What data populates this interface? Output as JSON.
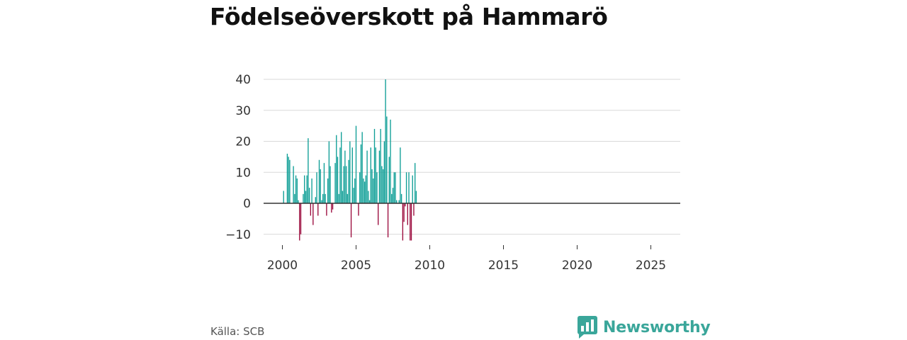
{
  "title": "Födelseöverskott på Hammarö",
  "source": "Källa: SCB",
  "brand": {
    "name": "Newsworthy",
    "icon": "newsworthy-logo-icon"
  },
  "colors": {
    "positive": "#0e9e96",
    "negative": "#9b0a3c",
    "grid": "#d9d9d9",
    "zero": "#333333",
    "brand": "#3aa69a"
  },
  "chart_data": {
    "type": "bar",
    "title": "Födelseöverskott på Hammarö",
    "xlabel": "",
    "ylabel": "",
    "x_frequency": "monthly",
    "x_start": 2000.0,
    "x_step": 0.0833333,
    "xlim": [
      1998.5,
      2026.8
    ],
    "ylim": [
      -13,
      41
    ],
    "y_ticks": [
      40,
      30,
      20,
      10,
      0,
      -10
    ],
    "x_ticks": [
      2000,
      2005,
      2010,
      2015,
      2020,
      2025
    ],
    "values": [
      0,
      4,
      0,
      0,
      16,
      15,
      14,
      0,
      0,
      12,
      3,
      9,
      8,
      1,
      -12,
      -10,
      0,
      3,
      9,
      4,
      9,
      21,
      5,
      -4,
      8,
      -7,
      0,
      2,
      10,
      -4,
      14,
      11,
      1,
      3,
      13,
      3,
      -4,
      8,
      20,
      12,
      -3,
      -2,
      0,
      13,
      22,
      15,
      3,
      18,
      23,
      4,
      12,
      17,
      12,
      3,
      14,
      20,
      -11,
      18,
      5,
      8,
      25,
      0,
      -4,
      10,
      19,
      23,
      8,
      7,
      9,
      17,
      4,
      1,
      18,
      11,
      8,
      24,
      18,
      10,
      -7,
      17,
      24,
      12,
      11,
      20,
      40,
      28,
      -11,
      15,
      27,
      3,
      5,
      10,
      10,
      1,
      0,
      1,
      18,
      3,
      -12,
      -6,
      -1,
      10,
      -7,
      10,
      -12,
      -12,
      9,
      -4,
      13,
      4
    ]
  }
}
